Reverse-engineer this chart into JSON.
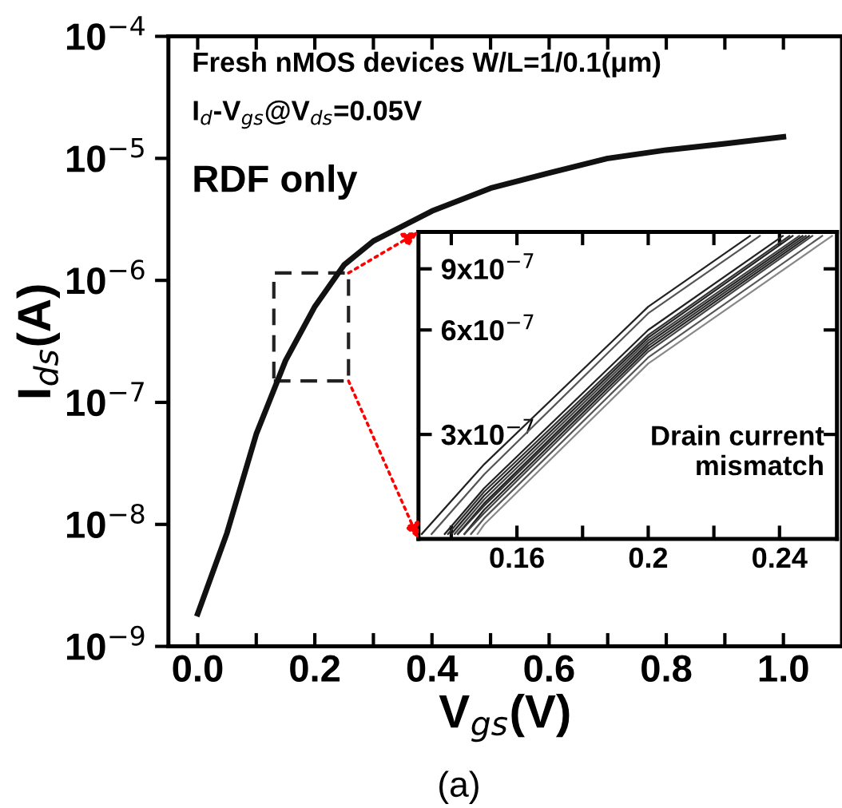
{
  "chart_data": [
    {
      "type": "line",
      "xlabel": "V$_{gs}$(V)",
      "ylabel": "I$_{ds}$(A)",
      "log": "y",
      "grid": false,
      "marker": "none",
      "line_style": "solid",
      "annotations": [
        "Fresh nMOS devices W/L=1/0.1(μm)",
        "I$_{d}$-V$_{gs}$@V$_{ds}$=0.05V",
        "RDF only",
        "(a)"
      ],
      "xlim": [
        -0.05,
        1.1
      ],
      "ylim": [
        1e-09,
        0.0001
      ],
      "xticks": [
        {
          "value": 0.0,
          "label": "0.0"
        },
        {
          "value": 0.1,
          "label": null
        },
        0.2,
        {
          "value": 0.3,
          "label": null
        },
        0.4,
        {
          "value": 0.5,
          "label": null
        },
        0.6,
        {
          "value": 0.7,
          "label": null
        },
        0.8,
        {
          "value": 0.9,
          "label": null
        },
        {
          "value": 1.0,
          "label": "1.0"
        }
      ],
      "yticks": [
        {
          "value": 1e-09,
          "label": "10$^{−9}$"
        },
        {
          "value": 1e-08,
          "label": "10$^{−8}$"
        },
        {
          "value": 1e-07,
          "label": "10$^{−7}$"
        },
        {
          "value": 1e-06,
          "label": "10$^{−6}$"
        },
        {
          "value": 1e-05,
          "label": "10$^{−5}$"
        },
        {
          "value": 0.0001,
          "label": "10$^{−4}$"
        }
      ],
      "x": [
        0.0,
        0.05,
        0.1,
        0.15,
        0.2,
        0.25,
        0.3,
        0.4,
        0.5,
        0.6,
        0.7,
        0.8,
        0.9,
        1.0
      ],
      "series": [
        {
          "color": "#111111",
          "values": [
            1.85e-09,
            8.5e-09,
            5.5e-08,
            2.2e-07,
            6.1e-07,
            1.34e-06,
            2.1e-06,
            3.7e-06,
            5.7e-06,
            7.6e-06,
            1e-05,
            1.17e-05,
            1.32e-05,
            1.5e-05
          ]
        }
      ]
    },
    {
      "type": "line",
      "log": "y",
      "grid": false,
      "marker": "none",
      "line_style": "solid",
      "annotations": [
        "Drain current mismatch"
      ],
      "xlim": [
        0.13,
        0.2575
      ],
      "ylim": [
        1.5e-07,
        1.15e-06
      ],
      "xticks": [
        {
          "value": 0.14,
          "label": null
        },
        0.16,
        {
          "value": 0.18,
          "label": null
        },
        0.2,
        {
          "value": 0.22,
          "label": null
        },
        0.24
      ],
      "yticks": [
        {
          "value": 3e-07,
          "label": "3x10$^{−7}$"
        },
        {
          "value": 6e-07,
          "label": "6x10$^{−7}$"
        },
        {
          "value": 9e-07,
          "label": "9x10$^{−7}$"
        }
      ],
      "series": [
        {
          "color": "#222222",
          "x": [
            0.131,
            0.15,
            0.2,
            0.231
          ],
          "values": [
            1.55e-07,
            2.46e-07,
            7e-07,
            1.12e-06
          ]
        },
        {
          "color": "#555555",
          "x": [
            0.134,
            0.15,
            0.2,
            0.234
          ],
          "values": [
            1.55e-07,
            2.3e-07,
            6.7e-07,
            1.12e-06
          ]
        },
        {
          "color": "#222222",
          "x": [
            0.138,
            0.15,
            0.2,
            0.241
          ],
          "values": [
            1.55e-07,
            2.1e-07,
            6e-07,
            1.12e-06
          ]
        },
        {
          "color": "#333333",
          "x": [
            0.139,
            0.15,
            0.2,
            0.243
          ],
          "values": [
            1.55e-07,
            2.05e-07,
            5.8e-07,
            1.12e-06
          ]
        },
        {
          "color": "#222222",
          "x": [
            0.14,
            0.15,
            0.2,
            0.244
          ],
          "values": [
            1.55e-07,
            2e-07,
            5.7e-07,
            1.12e-06
          ]
        },
        {
          "color": "#444444",
          "x": [
            0.141,
            0.15,
            0.2,
            0.246
          ],
          "values": [
            1.55e-07,
            1.95e-07,
            5.6e-07,
            1.12e-06
          ]
        },
        {
          "color": "#222222",
          "x": [
            0.142,
            0.15,
            0.2,
            0.247
          ],
          "values": [
            1.55e-07,
            1.9e-07,
            5.5e-07,
            1.12e-06
          ]
        },
        {
          "color": "#333333",
          "x": [
            0.142,
            0.15,
            0.2,
            0.248
          ],
          "values": [
            1.55e-07,
            1.87e-07,
            5.4e-07,
            1.12e-06
          ]
        },
        {
          "color": "#222222",
          "x": [
            0.144,
            0.15,
            0.2,
            0.249
          ],
          "values": [
            1.55e-07,
            1.82e-07,
            5.3e-07,
            1.12e-06
          ]
        },
        {
          "color": "#444444",
          "x": [
            0.144,
            0.15,
            0.2,
            0.25
          ],
          "values": [
            1.55e-07,
            1.78e-07,
            5.2e-07,
            1.12e-06
          ]
        },
        {
          "color": "#555555",
          "x": [
            0.146,
            0.15,
            0.2,
            0.253
          ],
          "values": [
            1.55e-07,
            1.72e-07,
            5e-07,
            1.12e-06
          ]
        },
        {
          "color": "#888888",
          "x": [
            0.148,
            0.15,
            0.2,
            0.256
          ],
          "values": [
            1.55e-07,
            1.65e-07,
            4.8e-07,
            1.12e-06
          ]
        }
      ]
    }
  ]
}
